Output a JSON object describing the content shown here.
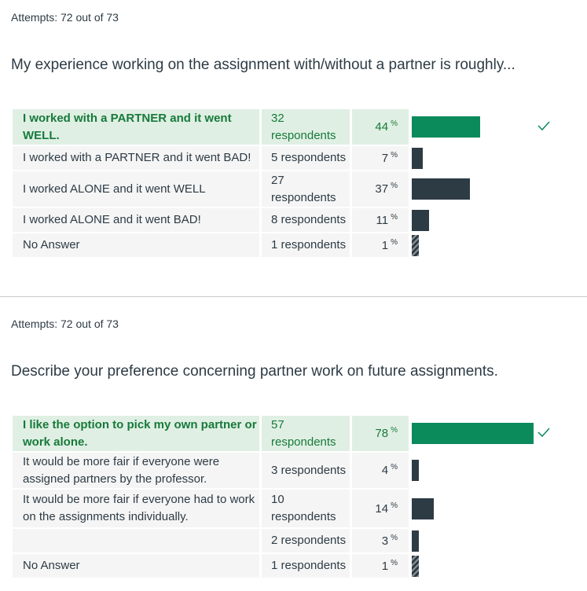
{
  "q1": {
    "attempts": "Attempts: 72 out of 73",
    "question": "My experience working on the assignment with/without a partner is roughly...",
    "answers": [
      {
        "text": "I worked with a PARTNER and it went WELL.",
        "respondents": "32 respondents",
        "percent": "44",
        "pct_value": 44,
        "correct": true
      },
      {
        "text": "I worked with a PARTNER and it went BAD!",
        "respondents": "5 respondents",
        "percent": "7",
        "pct_value": 7,
        "correct": false
      },
      {
        "text": "I worked ALONE and it went WELL",
        "respondents": "27 respondents",
        "percent": "37",
        "pct_value": 37,
        "correct": false
      },
      {
        "text": "I worked ALONE and it went BAD!",
        "respondents": "8 respondents",
        "percent": "11",
        "pct_value": 11,
        "correct": false
      },
      {
        "text": "No Answer",
        "respondents": "1 respondents",
        "percent": "1",
        "pct_value": 1,
        "correct": false
      }
    ]
  },
  "q2": {
    "attempts": "Attempts: 72 out of 73",
    "question": "Describe your preference concerning partner work on future assignments.",
    "answers": [
      {
        "text": "I like the option to pick my own partner or work alone.",
        "respondents": "57 respondents",
        "percent": "78",
        "pct_value": 78,
        "correct": true
      },
      {
        "text": "It would be more fair if everyone were assigned partners by the professor.",
        "respondents": "3 respondents",
        "percent": "4",
        "pct_value": 4,
        "correct": false
      },
      {
        "text": "It would be more fair if everyone had to work on the assignments individually.",
        "respondents": "10 respondents",
        "percent": "14",
        "pct_value": 14,
        "correct": false
      },
      {
        "text": "",
        "respondents": "2 respondents",
        "percent": "3",
        "pct_value": 3,
        "correct": false
      },
      {
        "text": "No Answer",
        "respondents": "1 respondents",
        "percent": "1",
        "pct_value": 1,
        "correct": false
      }
    ]
  },
  "percent_sign": "%",
  "check_icon": "check-icon",
  "colors": {
    "correct_bar": "#0b8a5c",
    "bar": "#2d3b45",
    "correct_bg": "#e0efe4",
    "row_bg": "#f5f5f5"
  }
}
